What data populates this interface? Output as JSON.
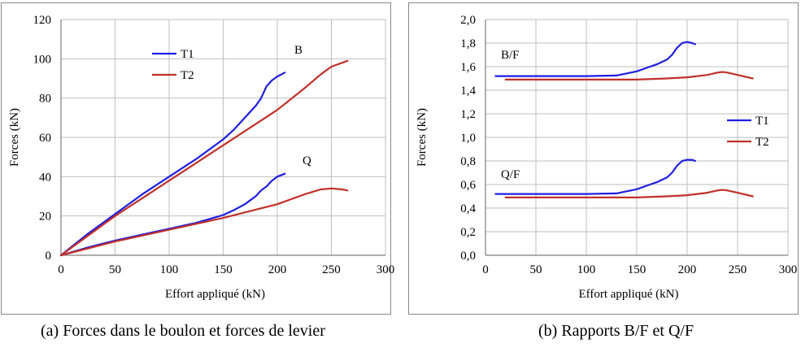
{
  "colors": {
    "T1": "#1f1fe0",
    "T2": "#c0302a",
    "grid": "#bfbfbf",
    "axis": "#7f7f7f"
  },
  "captions": {
    "a": "(a) Forces dans le boulon et forces de levier",
    "b": "(b) Rapports B/F et Q/F"
  },
  "chart_data": [
    {
      "type": "line",
      "xlabel": "Effort appliqué (kN)",
      "ylabel": "Forces (kN)",
      "xlim": [
        0,
        300
      ],
      "ylim": [
        0,
        120
      ],
      "x_ticks": [
        "0",
        "50",
        "100",
        "150",
        "200",
        "250",
        "300"
      ],
      "y_ticks": [
        "0",
        "20",
        "40",
        "60",
        "80",
        "100",
        "120"
      ],
      "grid": true,
      "legend": [
        "T1",
        "T2"
      ],
      "legend_position": "top-left",
      "annotations": [
        "B",
        "Q"
      ],
      "series": [
        {
          "name": "T1",
          "group": "B",
          "x": [
            0,
            25,
            50,
            75,
            100,
            125,
            150,
            160,
            170,
            180,
            185,
            190,
            195,
            200,
            207
          ],
          "y": [
            0,
            11,
            21,
            31,
            40,
            49,
            59,
            64,
            70,
            76,
            80,
            86,
            89,
            91,
            93
          ]
        },
        {
          "name": "T2",
          "group": "B",
          "x": [
            0,
            25,
            50,
            75,
            100,
            125,
            150,
            175,
            200,
            225,
            240,
            250,
            265
          ],
          "y": [
            0,
            10,
            20,
            29,
            38,
            47,
            56,
            65,
            74,
            85,
            92,
            96,
            99
          ]
        },
        {
          "name": "T1",
          "group": "Q",
          "x": [
            0,
            25,
            50,
            75,
            100,
            125,
            150,
            160,
            170,
            180,
            185,
            190,
            195,
            200,
            207
          ],
          "y": [
            0,
            4,
            7.5,
            10.5,
            13.5,
            16.5,
            20.5,
            23,
            26,
            30,
            33,
            35,
            38,
            40,
            41.5
          ]
        },
        {
          "name": "T2",
          "group": "Q",
          "x": [
            0,
            25,
            50,
            75,
            100,
            125,
            150,
            175,
            200,
            225,
            240,
            250,
            260,
            265
          ],
          "y": [
            0,
            3.5,
            7,
            10,
            13,
            16,
            19,
            22.5,
            26,
            31,
            33.5,
            34,
            33.5,
            33
          ]
        }
      ]
    },
    {
      "type": "line",
      "xlabel": "Effort appliqué (kN)",
      "ylabel": "Forces (kN)",
      "xlim": [
        0,
        300
      ],
      "ylim": [
        0,
        2
      ],
      "x_ticks": [
        "0",
        "50",
        "100",
        "150",
        "200",
        "250",
        "300"
      ],
      "y_ticks": [
        "0,0",
        "0,2",
        "0,4",
        "0,6",
        "0,8",
        "1,0",
        "1,2",
        "1,4",
        "1,6",
        "1,8",
        "2,0"
      ],
      "grid": true,
      "legend": [
        "T1",
        "T2"
      ],
      "legend_position": "center-right",
      "annotations": [
        "B/F",
        "Q/F"
      ],
      "series": [
        {
          "name": "T1",
          "group": "B/F",
          "x": [
            10,
            50,
            100,
            130,
            150,
            160,
            170,
            180,
            185,
            190,
            195,
            200,
            205,
            208
          ],
          "y": [
            1.52,
            1.52,
            1.52,
            1.525,
            1.56,
            1.59,
            1.62,
            1.66,
            1.7,
            1.76,
            1.8,
            1.81,
            1.8,
            1.79
          ]
        },
        {
          "name": "T2",
          "group": "B/F",
          "x": [
            20,
            50,
            100,
            150,
            180,
            200,
            220,
            230,
            235,
            240,
            250,
            265
          ],
          "y": [
            1.49,
            1.49,
            1.49,
            1.49,
            1.5,
            1.51,
            1.53,
            1.55,
            1.555,
            1.55,
            1.53,
            1.5
          ]
        },
        {
          "name": "T1",
          "group": "Q/F",
          "x": [
            10,
            50,
            100,
            130,
            150,
            160,
            170,
            180,
            185,
            190,
            195,
            200,
            205,
            208
          ],
          "y": [
            0.52,
            0.52,
            0.52,
            0.525,
            0.56,
            0.59,
            0.62,
            0.66,
            0.7,
            0.76,
            0.8,
            0.81,
            0.81,
            0.8
          ]
        },
        {
          "name": "T2",
          "group": "Q/F",
          "x": [
            20,
            50,
            100,
            150,
            180,
            200,
            220,
            230,
            235,
            240,
            250,
            265
          ],
          "y": [
            0.49,
            0.49,
            0.49,
            0.49,
            0.5,
            0.51,
            0.53,
            0.55,
            0.555,
            0.55,
            0.53,
            0.5
          ]
        }
      ]
    }
  ]
}
